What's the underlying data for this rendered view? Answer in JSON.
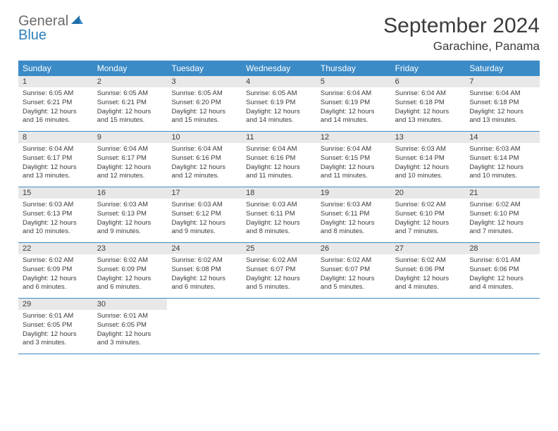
{
  "logo": {
    "word1": "General",
    "word2": "Blue"
  },
  "title": "September 2024",
  "location": "Garachine, Panama",
  "colors": {
    "header_bg": "#3b8bc7",
    "header_text": "#ffffff",
    "daynum_bg": "#e8e8e8",
    "body_text": "#3b3b3b",
    "row_border": "#3b8bc7",
    "logo_gray": "#6b6b6b",
    "logo_blue": "#2a7fba",
    "page_bg": "#ffffff"
  },
  "typography": {
    "title_fontsize": 30,
    "location_fontsize": 17,
    "dayhead_fontsize": 12,
    "daynum_fontsize": 11,
    "body_fontsize": 9.5
  },
  "day_headers": [
    "Sunday",
    "Monday",
    "Tuesday",
    "Wednesday",
    "Thursday",
    "Friday",
    "Saturday"
  ],
  "weeks": [
    [
      {
        "n": "1",
        "sr": "Sunrise: 6:05 AM",
        "ss": "Sunset: 6:21 PM",
        "dl1": "Daylight: 12 hours",
        "dl2": "and 16 minutes."
      },
      {
        "n": "2",
        "sr": "Sunrise: 6:05 AM",
        "ss": "Sunset: 6:21 PM",
        "dl1": "Daylight: 12 hours",
        "dl2": "and 15 minutes."
      },
      {
        "n": "3",
        "sr": "Sunrise: 6:05 AM",
        "ss": "Sunset: 6:20 PM",
        "dl1": "Daylight: 12 hours",
        "dl2": "and 15 minutes."
      },
      {
        "n": "4",
        "sr": "Sunrise: 6:05 AM",
        "ss": "Sunset: 6:19 PM",
        "dl1": "Daylight: 12 hours",
        "dl2": "and 14 minutes."
      },
      {
        "n": "5",
        "sr": "Sunrise: 6:04 AM",
        "ss": "Sunset: 6:19 PM",
        "dl1": "Daylight: 12 hours",
        "dl2": "and 14 minutes."
      },
      {
        "n": "6",
        "sr": "Sunrise: 6:04 AM",
        "ss": "Sunset: 6:18 PM",
        "dl1": "Daylight: 12 hours",
        "dl2": "and 13 minutes."
      },
      {
        "n": "7",
        "sr": "Sunrise: 6:04 AM",
        "ss": "Sunset: 6:18 PM",
        "dl1": "Daylight: 12 hours",
        "dl2": "and 13 minutes."
      }
    ],
    [
      {
        "n": "8",
        "sr": "Sunrise: 6:04 AM",
        "ss": "Sunset: 6:17 PM",
        "dl1": "Daylight: 12 hours",
        "dl2": "and 13 minutes."
      },
      {
        "n": "9",
        "sr": "Sunrise: 6:04 AM",
        "ss": "Sunset: 6:17 PM",
        "dl1": "Daylight: 12 hours",
        "dl2": "and 12 minutes."
      },
      {
        "n": "10",
        "sr": "Sunrise: 6:04 AM",
        "ss": "Sunset: 6:16 PM",
        "dl1": "Daylight: 12 hours",
        "dl2": "and 12 minutes."
      },
      {
        "n": "11",
        "sr": "Sunrise: 6:04 AM",
        "ss": "Sunset: 6:16 PM",
        "dl1": "Daylight: 12 hours",
        "dl2": "and 11 minutes."
      },
      {
        "n": "12",
        "sr": "Sunrise: 6:04 AM",
        "ss": "Sunset: 6:15 PM",
        "dl1": "Daylight: 12 hours",
        "dl2": "and 11 minutes."
      },
      {
        "n": "13",
        "sr": "Sunrise: 6:03 AM",
        "ss": "Sunset: 6:14 PM",
        "dl1": "Daylight: 12 hours",
        "dl2": "and 10 minutes."
      },
      {
        "n": "14",
        "sr": "Sunrise: 6:03 AM",
        "ss": "Sunset: 6:14 PM",
        "dl1": "Daylight: 12 hours",
        "dl2": "and 10 minutes."
      }
    ],
    [
      {
        "n": "15",
        "sr": "Sunrise: 6:03 AM",
        "ss": "Sunset: 6:13 PM",
        "dl1": "Daylight: 12 hours",
        "dl2": "and 10 minutes."
      },
      {
        "n": "16",
        "sr": "Sunrise: 6:03 AM",
        "ss": "Sunset: 6:13 PM",
        "dl1": "Daylight: 12 hours",
        "dl2": "and 9 minutes."
      },
      {
        "n": "17",
        "sr": "Sunrise: 6:03 AM",
        "ss": "Sunset: 6:12 PM",
        "dl1": "Daylight: 12 hours",
        "dl2": "and 9 minutes."
      },
      {
        "n": "18",
        "sr": "Sunrise: 6:03 AM",
        "ss": "Sunset: 6:11 PM",
        "dl1": "Daylight: 12 hours",
        "dl2": "and 8 minutes."
      },
      {
        "n": "19",
        "sr": "Sunrise: 6:03 AM",
        "ss": "Sunset: 6:11 PM",
        "dl1": "Daylight: 12 hours",
        "dl2": "and 8 minutes."
      },
      {
        "n": "20",
        "sr": "Sunrise: 6:02 AM",
        "ss": "Sunset: 6:10 PM",
        "dl1": "Daylight: 12 hours",
        "dl2": "and 7 minutes."
      },
      {
        "n": "21",
        "sr": "Sunrise: 6:02 AM",
        "ss": "Sunset: 6:10 PM",
        "dl1": "Daylight: 12 hours",
        "dl2": "and 7 minutes."
      }
    ],
    [
      {
        "n": "22",
        "sr": "Sunrise: 6:02 AM",
        "ss": "Sunset: 6:09 PM",
        "dl1": "Daylight: 12 hours",
        "dl2": "and 6 minutes."
      },
      {
        "n": "23",
        "sr": "Sunrise: 6:02 AM",
        "ss": "Sunset: 6:09 PM",
        "dl1": "Daylight: 12 hours",
        "dl2": "and 6 minutes."
      },
      {
        "n": "24",
        "sr": "Sunrise: 6:02 AM",
        "ss": "Sunset: 6:08 PM",
        "dl1": "Daylight: 12 hours",
        "dl2": "and 6 minutes."
      },
      {
        "n": "25",
        "sr": "Sunrise: 6:02 AM",
        "ss": "Sunset: 6:07 PM",
        "dl1": "Daylight: 12 hours",
        "dl2": "and 5 minutes."
      },
      {
        "n": "26",
        "sr": "Sunrise: 6:02 AM",
        "ss": "Sunset: 6:07 PM",
        "dl1": "Daylight: 12 hours",
        "dl2": "and 5 minutes."
      },
      {
        "n": "27",
        "sr": "Sunrise: 6:02 AM",
        "ss": "Sunset: 6:06 PM",
        "dl1": "Daylight: 12 hours",
        "dl2": "and 4 minutes."
      },
      {
        "n": "28",
        "sr": "Sunrise: 6:01 AM",
        "ss": "Sunset: 6:06 PM",
        "dl1": "Daylight: 12 hours",
        "dl2": "and 4 minutes."
      }
    ],
    [
      {
        "n": "29",
        "sr": "Sunrise: 6:01 AM",
        "ss": "Sunset: 6:05 PM",
        "dl1": "Daylight: 12 hours",
        "dl2": "and 3 minutes."
      },
      {
        "n": "30",
        "sr": "Sunrise: 6:01 AM",
        "ss": "Sunset: 6:05 PM",
        "dl1": "Daylight: 12 hours",
        "dl2": "and 3 minutes."
      },
      {
        "empty": true
      },
      {
        "empty": true
      },
      {
        "empty": true
      },
      {
        "empty": true
      },
      {
        "empty": true
      }
    ]
  ]
}
